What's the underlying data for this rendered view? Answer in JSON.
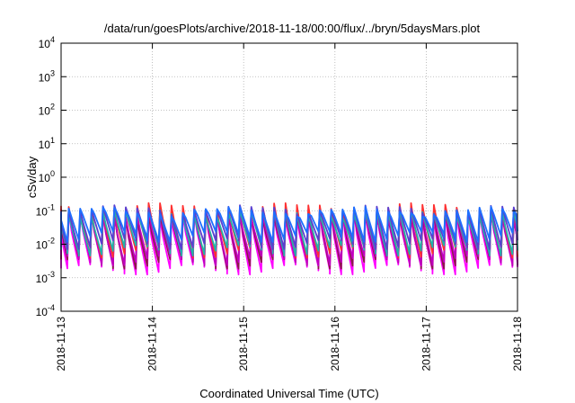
{
  "chart_data": {
    "type": "line",
    "title": "/data/run/goesPlots/archive/2018-11-18/00:00/flux/../bryn/5daysMars.plot",
    "xlabel": "Coordinated Universal Time (UTC)",
    "ylabel": "cSv/day",
    "y_scale": "log",
    "y_tick_labels": [
      {
        "base": "10",
        "exp": "-4"
      },
      {
        "base": "10",
        "exp": "-3"
      },
      {
        "base": "10",
        "exp": "-2"
      },
      {
        "base": "10",
        "exp": "-1"
      },
      {
        "base": "10",
        "exp": "0"
      },
      {
        "base": "10",
        "exp": "1"
      },
      {
        "base": "10",
        "exp": "2"
      },
      {
        "base": "10",
        "exp": "3"
      },
      {
        "base": "10",
        "exp": "4"
      }
    ],
    "y_tick_values": [
      0.0001,
      0.001,
      0.01,
      0.1,
      1,
      10,
      100,
      1000,
      10000
    ],
    "ylim": [
      0.0001,
      10000
    ],
    "x_tick_labels": [
      "2018-11-13",
      "2018-11-14",
      "2018-11-15",
      "2018-11-16",
      "2018-11-17",
      "2018-11-18"
    ],
    "xlim": [
      "2018-11-13T00:00",
      "2018-11-18T00:00"
    ],
    "grid": true,
    "sawtooth": {
      "period_hours": 3,
      "peak_range": [
        0.06,
        0.15
      ],
      "trough_range": [
        0.002,
        0.03
      ]
    },
    "series": [
      {
        "color": "#ff00ff",
        "peak": 0.075,
        "trough": 0.0019
      },
      {
        "color": "#8b1a4a",
        "peak": 0.085,
        "trough": 0.0028
      },
      {
        "color": "#c000c0",
        "peak": 0.09,
        "trough": 0.0035
      },
      {
        "color": "#ff3030",
        "peak": 0.13,
        "trough": 0.006
      },
      {
        "color": "#20b2aa",
        "peak": 0.09,
        "trough": 0.007
      },
      {
        "color": "#5a3fd0",
        "peak": 0.11,
        "trough": 0.011
      },
      {
        "color": "#1e6fff",
        "peak": 0.1,
        "trough": 0.018
      }
    ]
  }
}
